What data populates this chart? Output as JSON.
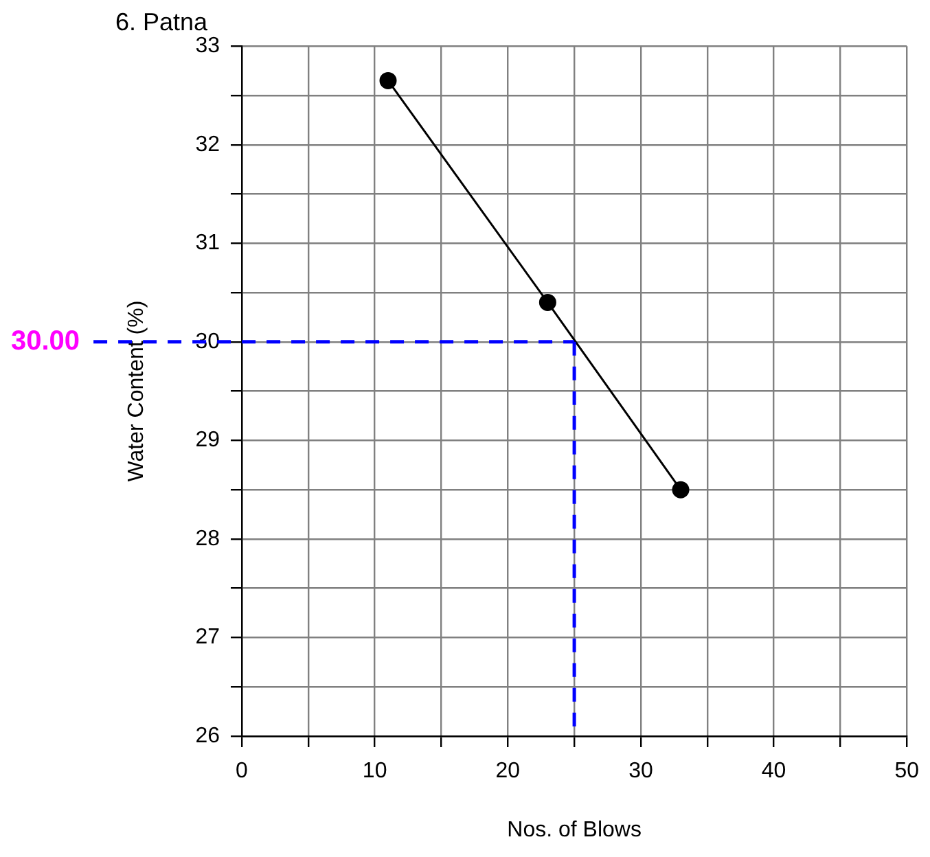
{
  "chart_data": {
    "type": "line",
    "title": "6. Patna",
    "xlabel": "Nos. of Blows",
    "ylabel": "Water Content (%)",
    "x": [
      11,
      23,
      33
    ],
    "series": [
      {
        "color": "#000000",
        "values": [
          32.65,
          30.4,
          28.5
        ]
      }
    ],
    "xlim": [
      0,
      50
    ],
    "xticks": [
      0,
      {
        "value": 5,
        "label": null
      },
      10,
      {
        "value": 15,
        "label": null
      },
      20,
      {
        "value": 25,
        "label": null
      },
      30,
      {
        "value": 35,
        "label": null
      },
      40,
      {
        "value": 45,
        "label": null
      },
      50
    ],
    "ylim": [
      26,
      33
    ],
    "yticks": [
      26,
      {
        "value": 26.5,
        "label": null
      },
      27,
      {
        "value": 27.5,
        "label": null
      },
      28,
      {
        "value": 28.5,
        "label": null
      },
      29,
      {
        "value": 29.5,
        "label": null
      },
      30,
      {
        "value": 30.5,
        "label": null
      },
      31,
      {
        "value": 31.5,
        "label": null
      },
      32,
      {
        "value": 32.5,
        "label": null
      },
      33
    ],
    "ref_lines": [
      {
        "axis": "y",
        "value": 30,
        "label": "30.00",
        "color": "#0000ff",
        "line_style": "dashed"
      },
      {
        "axis": "x",
        "value": 25,
        "color": "#0000ff",
        "line_style": "dashed"
      }
    ],
    "grid": true,
    "marker": "circle",
    "line_style": "solid",
    "legend": false
  }
}
